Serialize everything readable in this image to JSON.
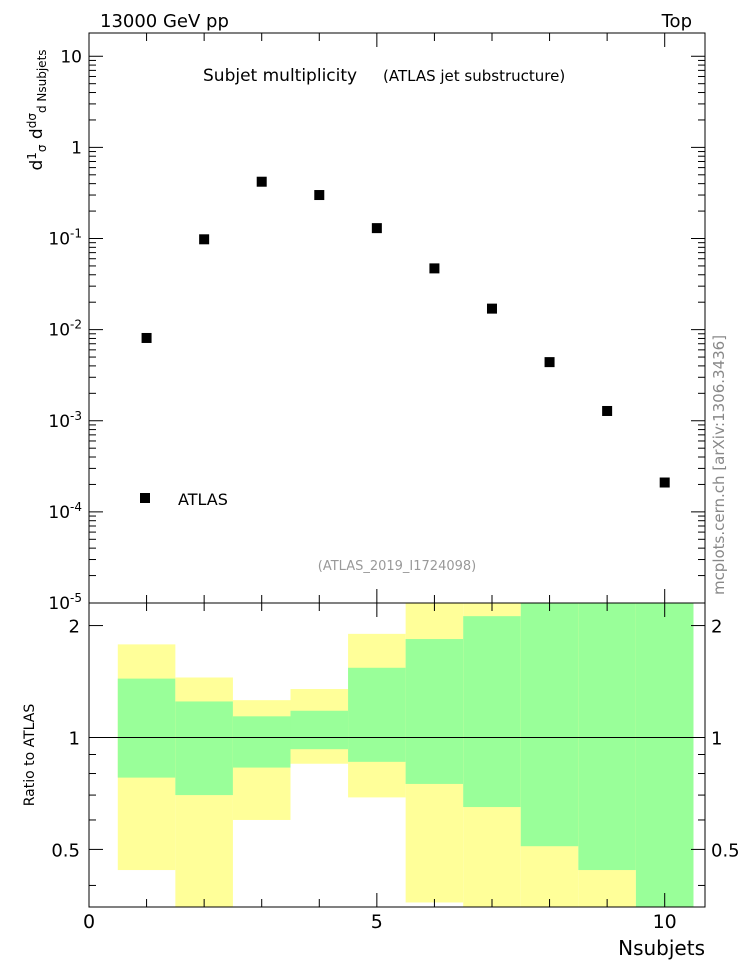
{
  "header": {
    "left": "13000 GeV pp",
    "right": "Top"
  },
  "side_label": "mcplots.cern.ch [arXiv:1306.3436]",
  "chart_data": [
    {
      "type": "scatter",
      "title": "Subjet multiplicity",
      "subtitle": "(ATLAS jet substructure)",
      "analysis_tag": "(ATLAS_2019_I1724098)",
      "yscale": "log",
      "ylim": [
        1e-05,
        18
      ],
      "xlim": [
        0,
        10.7
      ],
      "ylabel": "1/σ dσ/d Nsubjets",
      "ytick_labels": [
        "10",
        "1",
        "10^-1",
        "10^-2",
        "10^-3",
        "10^-4",
        "10^-5"
      ],
      "legend": {
        "position": "bottom-left",
        "entries": [
          "ATLAS"
        ]
      },
      "series": [
        {
          "name": "ATLAS",
          "x": [
            1,
            2,
            3,
            4,
            5,
            6,
            7,
            8,
            9,
            10
          ],
          "values": [
            0.0081,
            0.098,
            0.42,
            0.3,
            0.13,
            0.047,
            0.017,
            0.0044,
            0.00128,
            0.00021
          ]
        }
      ]
    },
    {
      "type": "area",
      "ylabel": "Ratio to ATLAS",
      "xlabel": "Nsubjets",
      "xlim": [
        0,
        10.7
      ],
      "ylim": [
        0.35,
        2.3
      ],
      "xtick_labels": [
        "0",
        "5",
        "10"
      ],
      "ytick_labels": [
        "0.5",
        "1",
        "2"
      ],
      "reference_line": 1,
      "bins": [
        {
          "lo": 0.5,
          "hi": 1.5,
          "yellow": [
            0.44,
            1.78
          ],
          "green": [
            0.78,
            1.44
          ]
        },
        {
          "lo": 1.5,
          "hi": 2.5,
          "yellow": [
            0.35,
            1.45
          ],
          "green": [
            0.7,
            1.25
          ]
        },
        {
          "lo": 2.5,
          "hi": 3.5,
          "yellow": [
            0.6,
            1.26
          ],
          "green": [
            0.83,
            1.14
          ]
        },
        {
          "lo": 3.5,
          "hi": 4.5,
          "yellow": [
            0.85,
            1.35
          ],
          "green": [
            0.93,
            1.18
          ]
        },
        {
          "lo": 4.5,
          "hi": 5.5,
          "yellow": [
            0.69,
            1.9
          ],
          "green": [
            0.86,
            1.54
          ]
        },
        {
          "lo": 5.5,
          "hi": 6.5,
          "yellow": [
            0.36,
            2.3
          ],
          "green": [
            0.75,
            1.84
          ]
        },
        {
          "lo": 6.5,
          "hi": 7.5,
          "yellow": [
            0.35,
            2.3
          ],
          "green": [
            0.65,
            2.12
          ]
        },
        {
          "lo": 7.5,
          "hi": 8.5,
          "yellow": [
            0.35,
            2.3
          ],
          "green": [
            0.51,
            2.3
          ]
        },
        {
          "lo": 8.5,
          "hi": 9.5,
          "yellow": [
            0.35,
            2.3
          ],
          "green": [
            0.44,
            2.3
          ]
        },
        {
          "lo": 9.5,
          "hi": 10.5,
          "yellow": [
            0.35,
            2.3
          ],
          "green": [
            0.35,
            2.3
          ]
        }
      ]
    }
  ]
}
